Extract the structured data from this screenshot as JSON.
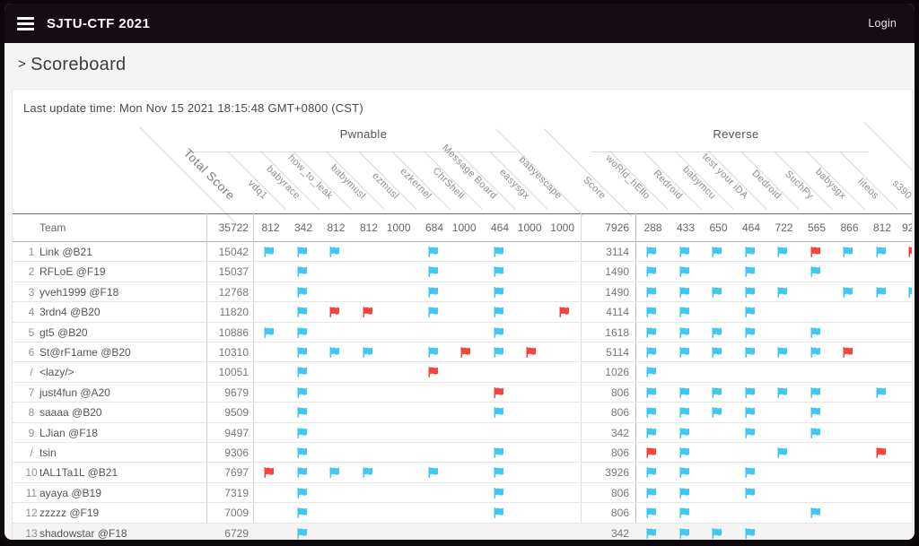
{
  "navbar": {
    "title": "SJTU-CTF 2021",
    "login_label": "Login"
  },
  "breadcrumb": {
    "chevron": ">",
    "title": "Scoreboard"
  },
  "last_update": "Last update time: Mon Nov 15 2021 18:15:48 GMT+0800 (CST)",
  "colors": {
    "solved_flag": "#41c7f2",
    "first_blood_flag": "#f5433e",
    "navbar_bg": "#150d13"
  },
  "flag_codes": {
    "b": "solved (blue flag)",
    "r": "first blood (red flag)"
  },
  "scoreboard": {
    "team_header": "Team",
    "total_score": {
      "label": "Total Score",
      "value": "35722"
    },
    "groups": [
      {
        "label": "Pwnable",
        "challenges": [
          [
            "vdq1",
            "812"
          ],
          [
            "babyrace",
            "342"
          ],
          [
            "how_to_leak",
            "812"
          ],
          [
            "babymusl",
            "812"
          ],
          [
            "ezmusl",
            "1000"
          ],
          [
            "ezkernel",
            "684"
          ],
          [
            "ChrShell",
            "1000"
          ],
          [
            "Message Board",
            "464"
          ],
          [
            "easysgx",
            "1000"
          ],
          [
            "babyescape",
            "1000"
          ]
        ],
        "score": {
          "label": "Score",
          "value": "7926"
        }
      },
      {
        "label": "Reverse",
        "challenges": [
          [
            "woRld_hEllo",
            "288"
          ],
          [
            "Redroid",
            "433"
          ],
          [
            "babymcu",
            "650"
          ],
          [
            "test your iDA",
            "464"
          ],
          [
            "Dedroid",
            "722"
          ],
          [
            "SuchPy",
            "565"
          ],
          [
            "babysgx",
            "866"
          ],
          [
            "liteos",
            "812"
          ],
          [
            "s390",
            "92"
          ]
        ]
      }
    ],
    "rows": [
      {
        "rank": "1",
        "team": "Link @B21",
        "total": "15042",
        "pwn_score": "3114",
        "pwn": [
          "b",
          "b",
          "b",
          "",
          "",
          "b",
          "",
          "b",
          "",
          ""
        ],
        "rev": [
          "b",
          "b",
          "b",
          "b",
          "b",
          "r",
          "b",
          "b",
          "r"
        ]
      },
      {
        "rank": "2",
        "team": "RFLoE @F19",
        "total": "15037",
        "pwn_score": "1490",
        "pwn": [
          "",
          "b",
          "",
          "",
          "",
          "b",
          "",
          "b",
          "",
          ""
        ],
        "rev": [
          "b",
          "b",
          "",
          "b",
          "",
          "b",
          "",
          "",
          ""
        ]
      },
      {
        "rank": "3",
        "team": "yveh1999 @F18",
        "total": "12768",
        "pwn_score": "1490",
        "pwn": [
          "",
          "b",
          "",
          "",
          "",
          "b",
          "",
          "b",
          "",
          ""
        ],
        "rev": [
          "b",
          "b",
          "b",
          "b",
          "b",
          "",
          "b",
          "b",
          "b"
        ]
      },
      {
        "rank": "4",
        "team": "3rdn4 @B20",
        "total": "11820",
        "pwn_score": "4114",
        "pwn": [
          "",
          "b",
          "r",
          "r",
          "",
          "b",
          "",
          "b",
          "",
          "r"
        ],
        "rev": [
          "b",
          "b",
          "",
          "b",
          "",
          "",
          "",
          "",
          ""
        ]
      },
      {
        "rank": "5",
        "team": "gt5 @B20",
        "total": "10886",
        "pwn_score": "1618",
        "pwn": [
          "b",
          "b",
          "",
          "",
          "",
          "",
          "",
          "b",
          "",
          ""
        ],
        "rev": [
          "b",
          "b",
          "b",
          "b",
          "",
          "b",
          "",
          "",
          ""
        ]
      },
      {
        "rank": "6",
        "team": "St@rF1ame @B20",
        "total": "10310",
        "pwn_score": "5114",
        "pwn": [
          "",
          "b",
          "b",
          "b",
          "",
          "b",
          "r",
          "b",
          "r",
          ""
        ],
        "rev": [
          "b",
          "b",
          "b",
          "b",
          "b",
          "b",
          "r",
          "",
          ""
        ]
      },
      {
        "rank": "/",
        "team": "<lazy/>",
        "total": "10051",
        "pwn_score": "1026",
        "pwn": [
          "",
          "b",
          "",
          "",
          "",
          "r",
          "",
          "",
          "",
          ""
        ],
        "rev": [
          "b",
          "",
          "",
          "",
          "",
          "",
          "",
          "",
          ""
        ]
      },
      {
        "rank": "7",
        "team": "just4fun @A20",
        "total": "9679",
        "pwn_score": "806",
        "pwn": [
          "",
          "b",
          "",
          "",
          "",
          "",
          "",
          "r",
          "",
          ""
        ],
        "rev": [
          "b",
          "b",
          "b",
          "b",
          "b",
          "b",
          "",
          "b",
          ""
        ]
      },
      {
        "rank": "8",
        "team": "saaaa @B20",
        "total": "9509",
        "pwn_score": "806",
        "pwn": [
          "",
          "b",
          "",
          "",
          "",
          "",
          "",
          "b",
          "",
          ""
        ],
        "rev": [
          "b",
          "b",
          "b",
          "b",
          "",
          "b",
          "",
          "",
          ""
        ]
      },
      {
        "rank": "9",
        "team": "LJian @F18",
        "total": "9497",
        "pwn_score": "342",
        "pwn": [
          "",
          "b",
          "",
          "",
          "",
          "",
          "",
          "",
          "",
          ""
        ],
        "rev": [
          "b",
          "b",
          "",
          "b",
          "",
          "b",
          "",
          "",
          ""
        ]
      },
      {
        "rank": "/",
        "team": "tsin",
        "total": "9306",
        "pwn_score": "806",
        "pwn": [
          "",
          "b",
          "",
          "",
          "",
          "",
          "",
          "b",
          "",
          ""
        ],
        "rev": [
          "r",
          "b",
          "",
          "",
          "b",
          "",
          "",
          "r",
          ""
        ]
      },
      {
        "rank": "10",
        "team": "tAL1Ta1L @B21",
        "total": "7697",
        "pwn_score": "3926",
        "pwn": [
          "r",
          "b",
          "b",
          "b",
          "",
          "b",
          "",
          "b",
          "",
          ""
        ],
        "rev": [
          "b",
          "b",
          "",
          "b",
          "",
          "",
          "",
          "",
          ""
        ]
      },
      {
        "rank": "11",
        "team": "ayaya @B19",
        "total": "7319",
        "pwn_score": "806",
        "pwn": [
          "",
          "b",
          "",
          "",
          "",
          "",
          "",
          "b",
          "",
          ""
        ],
        "rev": [
          "b",
          "b",
          "",
          "b",
          "",
          "",
          "",
          "",
          ""
        ]
      },
      {
        "rank": "12",
        "team": "zzzzz @F19",
        "total": "7009",
        "pwn_score": "806",
        "pwn": [
          "",
          "b",
          "",
          "",
          "",
          "",
          "",
          "b",
          "",
          ""
        ],
        "rev": [
          "b",
          "b",
          "",
          "",
          "",
          "b",
          "",
          "",
          ""
        ]
      },
      {
        "rank": "13",
        "team": "shadowstar @F18",
        "total": "6729",
        "pwn_score": "342",
        "pwn": [
          "",
          "b",
          "",
          "",
          "",
          "",
          "",
          "",
          "",
          ""
        ],
        "rev": [
          "b",
          "b",
          "b",
          "b",
          "",
          "",
          "",
          "",
          ""
        ]
      }
    ]
  }
}
